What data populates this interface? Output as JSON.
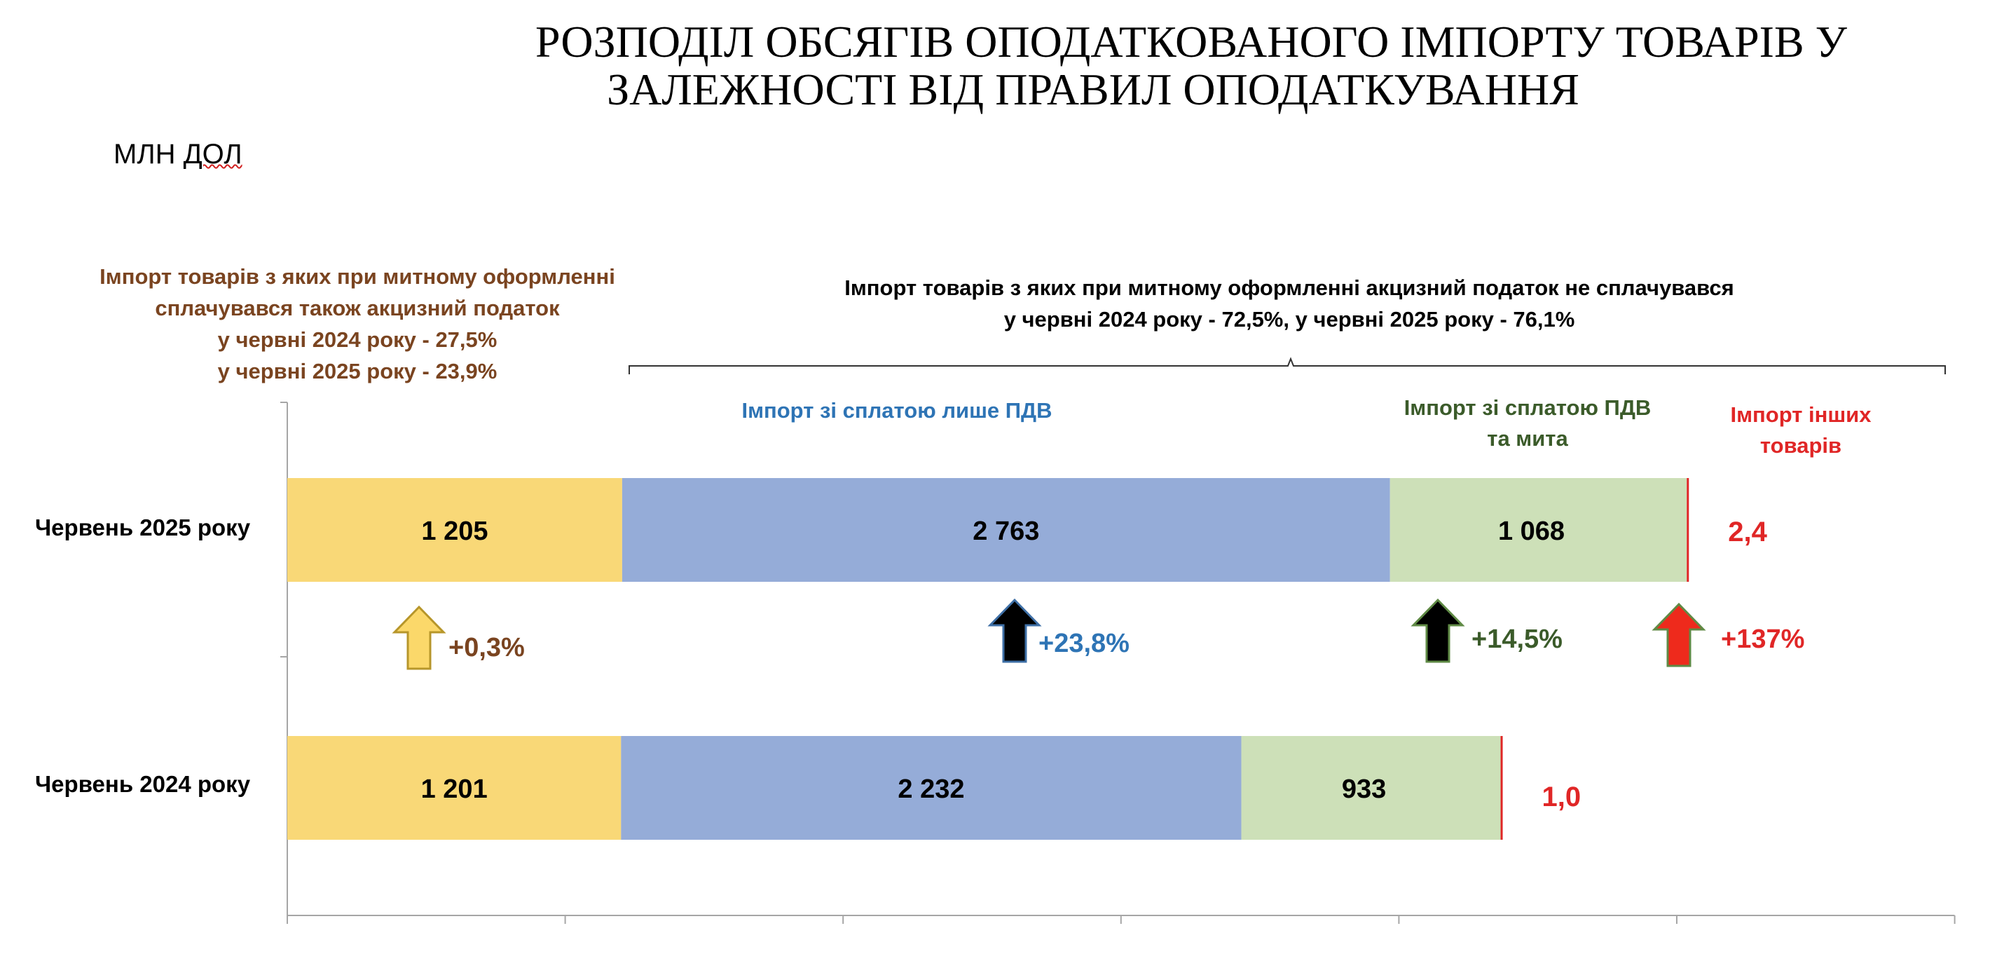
{
  "title": {
    "line1": "РОЗПОДІЛ ОБСЯГІВ ОПОДАТКОВАНОГО ІМПОРТУ ТОВАРІВ У",
    "line2": "ЗАЛЕЖНОСТІ ВІД ПРАВИЛ ОПОДАТКУВАННЯ"
  },
  "units": {
    "part1": "МЛН ",
    "part2": "ДОЛ"
  },
  "notes": {
    "excise": {
      "line1": "Імпорт товарів з яких при митному оформленні",
      "line2": "сплачувався також акцизний податок",
      "line3": "у червні 2024 року  - 27,5%",
      "line4": "у червні 2025 року - 23,9%"
    },
    "non_excise": {
      "line1": "Імпорт товарів  з яких при митному оформленні акцизний податок не сплачувався",
      "line2": "у червні 2024 року  - 72,5%, у червні 2025 року - 76,1%"
    }
  },
  "captions": {
    "vat_only": "Імпорт зі сплатою лише ПДВ",
    "vat_duty_line1": "Імпорт зі сплатою ПДВ",
    "vat_duty_line2": "та мита",
    "other_line1": "Імпорт інших",
    "other_line2": "товарів"
  },
  "colors": {
    "excise": "#f9d877",
    "vat_only": "#95acd8",
    "vat_duty": "#cde0b8",
    "other": "#e02626",
    "arrow_excise": "#fbd86a",
    "arrow_vat": "#6a99cc",
    "arrow_duty": "#a9cf8c",
    "arrow_other": "#ee2a1c"
  },
  "chart_data": {
    "type": "bar",
    "orientation": "horizontal",
    "stacked": true,
    "units": "млн дол",
    "categories": [
      "Червень 2025 року",
      "Червень 2024 року"
    ],
    "series": [
      {
        "key": "excise",
        "name": "Імпорт товарів з яких при митному оформленні сплачувався також акцизний податок",
        "values": [
          1205,
          1201
        ],
        "labels": [
          "1 205",
          "1 201"
        ]
      },
      {
        "key": "vat_only",
        "name": "Імпорт зі сплатою лише ПДВ",
        "values": [
          2763,
          2232
        ],
        "labels": [
          "2 763",
          "2 232"
        ]
      },
      {
        "key": "vat_duty",
        "name": "Імпорт зі сплатою ПДВ та мита",
        "values": [
          1068,
          933
        ],
        "labels": [
          "1 068",
          "933"
        ]
      },
      {
        "key": "other",
        "name": "Імпорт інших товарів",
        "values": [
          2.4,
          1.0
        ],
        "labels": [
          "2,4",
          "1,0"
        ]
      }
    ],
    "changes": [
      {
        "key": "excise",
        "label": "+0,3%"
      },
      {
        "key": "vat_only",
        "label": "+23,8%"
      },
      {
        "key": "vat_duty",
        "label": "+14,5%"
      },
      {
        "key": "other",
        "label": "+137%"
      }
    ],
    "xlim": [
      0,
      6000
    ],
    "xtick_step": 1000,
    "grid": false
  }
}
